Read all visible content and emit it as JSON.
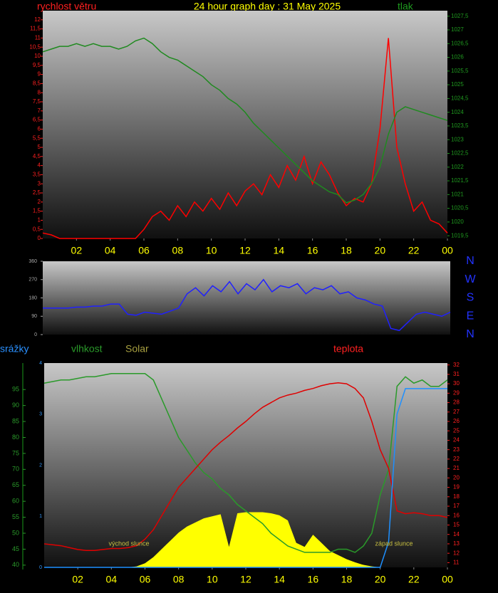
{
  "chart_data": [
    {
      "type": "line",
      "title": "24 hour graph day : 31 May 2025",
      "x": [
        0,
        0.5,
        1,
        1.5,
        2,
        2.5,
        3,
        3.5,
        4,
        4.5,
        5,
        5.5,
        6,
        6.5,
        7,
        7.5,
        8,
        8.5,
        9,
        9.5,
        10,
        10.5,
        11,
        11.5,
        12,
        12.5,
        13,
        13.5,
        14,
        14.5,
        15,
        15.5,
        16,
        16.5,
        17,
        17.5,
        18,
        18.5,
        19,
        19.5,
        20,
        20.5,
        21,
        21.5,
        22,
        22.5,
        23,
        23.5,
        24
      ],
      "xlim": [
        0,
        24
      ],
      "xticks": [
        {
          "value": 2,
          "label": "02"
        },
        {
          "value": 4,
          "label": "04"
        },
        {
          "value": 6,
          "label": "06"
        },
        {
          "value": 8,
          "label": "08"
        },
        10,
        12,
        14,
        16,
        18,
        20,
        22,
        {
          "value": 24,
          "label": "00"
        }
      ],
      "ylim": [
        0,
        12.5
      ],
      "yticks": [
        0,
        {
          "value": 0.5,
          "label": "0,5"
        },
        1,
        {
          "value": 1.5,
          "label": "1,5"
        },
        2,
        {
          "value": 2.5,
          "label": "2,5"
        },
        3,
        {
          "value": 3.5,
          "label": "3,5"
        },
        4,
        {
          "value": 4.5,
          "label": "4,5"
        },
        5,
        {
          "value": 5.5,
          "label": "5,5"
        },
        6,
        {
          "value": 6.5,
          "label": "6,5"
        },
        7,
        {
          "value": 7.5,
          "label": "7,5"
        },
        8,
        {
          "value": 8.5,
          "label": "8,5"
        },
        9,
        {
          "value": 9.5,
          "label": "9,5"
        },
        10,
        {
          "value": 10.5,
          "label": "10,5"
        },
        11,
        {
          "value": 11.5,
          "label": "11,5"
        },
        12
      ],
      "y2lim": [
        1019.4,
        1027.7
      ],
      "y2ticks": [
        {
          "value": 1019.5,
          "label": "1019,5"
        },
        1020,
        {
          "value": 1020.5,
          "label": "1020,5"
        },
        1021,
        {
          "value": 1021.5,
          "label": "1021,5"
        },
        1022,
        {
          "value": 1022.5,
          "label": "1022,5"
        },
        1023,
        {
          "value": 1023.5,
          "label": "1023,5"
        },
        1024,
        {
          "value": 1024.5,
          "label": "1024,5"
        },
        1025,
        {
          "value": 1025.5,
          "label": "1025,5"
        },
        1026,
        {
          "value": 1026.5,
          "label": "1026,5"
        },
        1027,
        {
          "value": 1027.5,
          "label": "1027,5"
        }
      ],
      "series": [
        {
          "name": "rychlost větru",
          "color": "#ff0000",
          "axis": "y",
          "values": [
            0.3,
            0.2,
            0,
            0,
            0,
            0,
            0,
            0,
            0,
            0,
            0,
            0,
            0.5,
            1.2,
            1.5,
            1.0,
            1.8,
            1.2,
            2.0,
            1.5,
            2.2,
            1.6,
            2.5,
            1.8,
            2.6,
            3.0,
            2.4,
            3.5,
            2.8,
            4.0,
            3.2,
            4.5,
            3.0,
            4.2,
            3.5,
            2.5,
            1.8,
            2.2,
            2.0,
            3.0,
            6.0,
            11.0,
            5.0,
            3.0,
            1.5,
            2.0,
            1.0,
            0.8,
            0.3
          ]
        },
        {
          "name": "tlak",
          "color": "#1f8a1f",
          "axis": "y2",
          "values": [
            1026.2,
            1026.3,
            1026.4,
            1026.4,
            1026.5,
            1026.4,
            1026.5,
            1026.4,
            1026.4,
            1026.3,
            1026.4,
            1026.6,
            1026.7,
            1026.5,
            1026.2,
            1026.0,
            1025.9,
            1025.7,
            1025.5,
            1025.3,
            1025.0,
            1024.8,
            1024.5,
            1024.3,
            1024.0,
            1023.6,
            1023.3,
            1023.0,
            1022.7,
            1022.4,
            1022.1,
            1021.8,
            1021.5,
            1021.3,
            1021.1,
            1021.0,
            1020.7,
            1020.8,
            1021.0,
            1021.4,
            1022.0,
            1023.2,
            1024.0,
            1024.2,
            1024.1,
            1024.0,
            1023.9,
            1023.8,
            1023.7
          ]
        }
      ]
    },
    {
      "type": "line",
      "x": [
        0,
        0.5,
        1,
        1.5,
        2,
        2.5,
        3,
        3.5,
        4,
        4.5,
        5,
        5.5,
        6,
        6.5,
        7,
        7.5,
        8,
        8.5,
        9,
        9.5,
        10,
        10.5,
        11,
        11.5,
        12,
        12.5,
        13,
        13.5,
        14,
        14.5,
        15,
        15.5,
        16,
        16.5,
        17,
        17.5,
        18,
        18.5,
        19,
        19.5,
        20,
        20.5,
        21,
        21.5,
        22,
        22.5,
        23,
        23.5,
        24
      ],
      "xlim": [
        0,
        24
      ],
      "ylim": [
        0,
        360
      ],
      "yticks": [
        0,
        90,
        180,
        270,
        360
      ],
      "y2lim": [
        0,
        360
      ],
      "y2ticks": [
        {
          "value": 360,
          "label": "N"
        },
        {
          "value": 270,
          "label": "W"
        },
        {
          "value": 180,
          "label": "S"
        },
        {
          "value": 90,
          "label": "E"
        },
        {
          "value": 0,
          "label": "N"
        }
      ],
      "series": [
        {
          "color": "#2020ff",
          "axis": "y",
          "values": [
            130,
            130,
            130,
            130,
            135,
            135,
            140,
            140,
            150,
            150,
            100,
            95,
            110,
            105,
            100,
            115,
            130,
            200,
            230,
            190,
            240,
            210,
            260,
            200,
            250,
            220,
            270,
            210,
            240,
            230,
            250,
            200,
            230,
            220,
            240,
            200,
            210,
            180,
            170,
            150,
            140,
            30,
            20,
            60,
            100,
            110,
            100,
            90,
            110
          ]
        }
      ]
    },
    {
      "type": "line",
      "x": [
        0,
        0.5,
        1,
        1.5,
        2,
        2.5,
        3,
        3.5,
        4,
        4.5,
        5,
        5.5,
        6,
        6.5,
        7,
        7.5,
        8,
        8.5,
        9,
        9.5,
        10,
        10.5,
        11,
        11.5,
        12,
        12.5,
        13,
        13.5,
        14,
        14.5,
        15,
        15.5,
        16,
        16.5,
        17,
        17.5,
        18,
        18.5,
        19,
        19.5,
        20,
        20.5,
        21,
        21.5,
        22,
        22.5,
        23,
        23.5,
        24
      ],
      "xlim": [
        0,
        24
      ],
      "xticks": [
        {
          "value": 2,
          "label": "02"
        },
        {
          "value": 4,
          "label": "04"
        },
        {
          "value": 6,
          "label": "06"
        },
        {
          "value": 8,
          "label": "08"
        },
        10,
        12,
        14,
        16,
        18,
        20,
        22,
        {
          "value": 24,
          "label": "00"
        }
      ],
      "ylim": [
        39.3,
        103.3
      ],
      "yticks": [
        40,
        45,
        50,
        55,
        60,
        65,
        70,
        75,
        80,
        85,
        90,
        95
      ],
      "y2lim": [
        10.5,
        32.2
      ],
      "y2ticks": [
        11,
        12,
        13,
        14,
        15,
        16,
        17,
        18,
        19,
        20,
        21,
        22,
        23,
        24,
        25,
        26,
        27,
        28,
        29,
        30,
        31,
        32
      ],
      "y3lim": [
        0,
        4
      ],
      "y3ticks": [
        0,
        1,
        2,
        3,
        4
      ],
      "y4lim": [
        0,
        1000
      ],
      "annotations": [
        "východ slunce",
        "západ slunce"
      ],
      "series": [
        {
          "name": "Solar",
          "type": "area",
          "color": "#ffff00",
          "axis": "y4",
          "values": [
            0,
            0,
            0,
            0,
            0,
            0,
            0,
            0,
            0,
            0,
            0,
            5,
            20,
            50,
            90,
            130,
            170,
            200,
            220,
            240,
            250,
            260,
            100,
            265,
            270,
            270,
            270,
            265,
            255,
            230,
            120,
            100,
            160,
            120,
            80,
            60,
            40,
            25,
            12,
            5,
            0,
            0,
            0,
            0,
            0,
            0,
            0,
            0,
            0
          ]
        },
        {
          "name": "vlhkost",
          "color": "#2a9a2a",
          "axis": "y",
          "values": [
            97,
            97.5,
            98,
            98,
            98.5,
            99,
            99,
            99.5,
            100,
            100,
            100,
            100,
            100,
            98,
            92,
            86,
            80,
            76,
            72,
            69,
            67,
            64,
            62,
            59,
            57,
            55,
            53,
            50,
            48,
            46,
            45,
            44,
            44,
            44,
            44,
            45,
            45,
            44,
            46,
            50,
            62,
            70,
            96,
            99,
            97,
            98,
            96,
            96,
            98
          ]
        },
        {
          "name": "teplota",
          "color": "#e00000",
          "axis": "y2",
          "values": [
            13.0,
            12.9,
            12.8,
            12.6,
            12.4,
            12.3,
            12.3,
            12.4,
            12.5,
            12.5,
            12.6,
            12.8,
            13.5,
            14.5,
            16.0,
            17.5,
            19.0,
            20.0,
            21.0,
            22.0,
            23.0,
            23.8,
            24.5,
            25.3,
            26.0,
            26.8,
            27.5,
            28.0,
            28.5,
            28.8,
            29.0,
            29.3,
            29.5,
            29.8,
            30.0,
            30.1,
            30.0,
            29.5,
            28.5,
            26.0,
            23.0,
            21.0,
            16.5,
            16.2,
            16.3,
            16.2,
            16.0,
            16.0,
            15.8
          ]
        },
        {
          "name": "srážky",
          "color": "#1e90ff",
          "axis": "y3",
          "values": [
            0,
            0,
            0,
            0,
            0,
            0,
            0,
            0,
            0,
            0,
            0,
            0,
            0,
            0,
            0,
            0,
            0,
            0,
            0,
            0,
            0,
            0,
            0,
            0,
            0,
            0,
            0,
            0,
            0,
            0,
            0,
            0,
            0,
            0,
            0,
            0,
            0,
            0,
            0,
            0,
            0,
            0.5,
            3.0,
            3.5,
            3.5,
            3.5,
            3.5,
            3.5,
            3.5
          ]
        }
      ]
    }
  ]
}
